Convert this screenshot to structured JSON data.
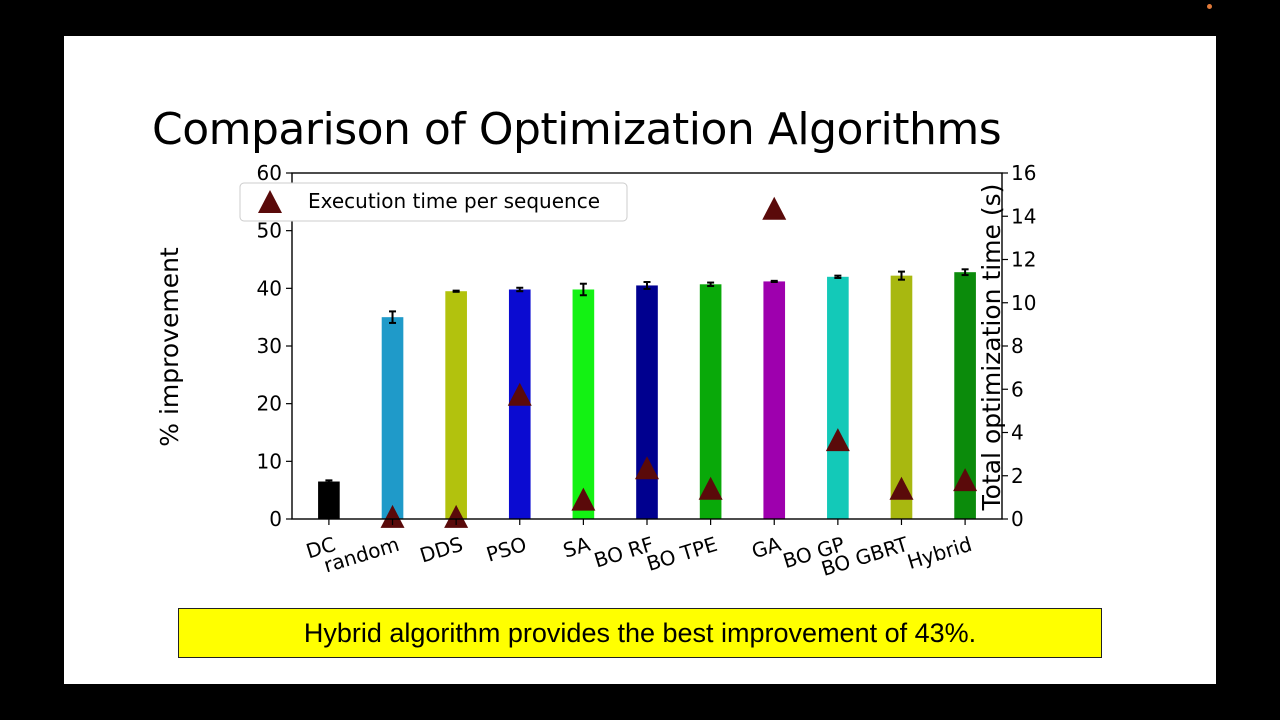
{
  "slide": {
    "title": "Comparison of Optimization Algorithms",
    "callout": "Hybrid algorithm provides the best improvement of 43%."
  },
  "colors": {
    "marker": "#5a0a0a",
    "callout_background": "#ffff00"
  },
  "chart_data": {
    "type": "bar",
    "categories": [
      "DC",
      "random",
      "DDS",
      "PSO",
      "SA",
      "BO RF",
      "BO TPE",
      "GA",
      "BO GP",
      "BO GBRT",
      "Hybrid"
    ],
    "series": [
      {
        "values": [
          6.5,
          35.0,
          39.5,
          39.8,
          39.8,
          40.5,
          40.7,
          41.2,
          42.0,
          42.2,
          42.8
        ],
        "errors": [
          0.2,
          1.0,
          0.1,
          0.3,
          1.0,
          0.6,
          0.3,
          0.1,
          0.2,
          0.7,
          0.5
        ],
        "colors": [
          "#000000",
          "#1f9ac9",
          "#b2c20d",
          "#0b0bd1",
          "#13f213",
          "#00008f",
          "#09a909",
          "#9e00ae",
          "#13c9b8",
          "#a8b810",
          "#0b8b0b"
        ],
        "axis": "left"
      },
      {
        "name": "Execution time per sequence",
        "type": "scatter",
        "marker": "triangle",
        "values": [
          null,
          0.05,
          0.05,
          5.7,
          0.85,
          2.3,
          1.35,
          14.3,
          3.6,
          1.35,
          1.75
        ],
        "axis": "right"
      }
    ],
    "title": "",
    "xlabel": "",
    "ylabel": "% improvement",
    "ylabel_right": "Total optimization time (s)",
    "ylim": [
      0,
      60
    ],
    "ylim_right": [
      0,
      16
    ],
    "yticks": [
      0,
      10,
      20,
      30,
      40,
      50,
      60
    ],
    "yticks_right": [
      0,
      2,
      4,
      6,
      8,
      10,
      12,
      14,
      16
    ],
    "legend": "top-left",
    "grid": false
  }
}
